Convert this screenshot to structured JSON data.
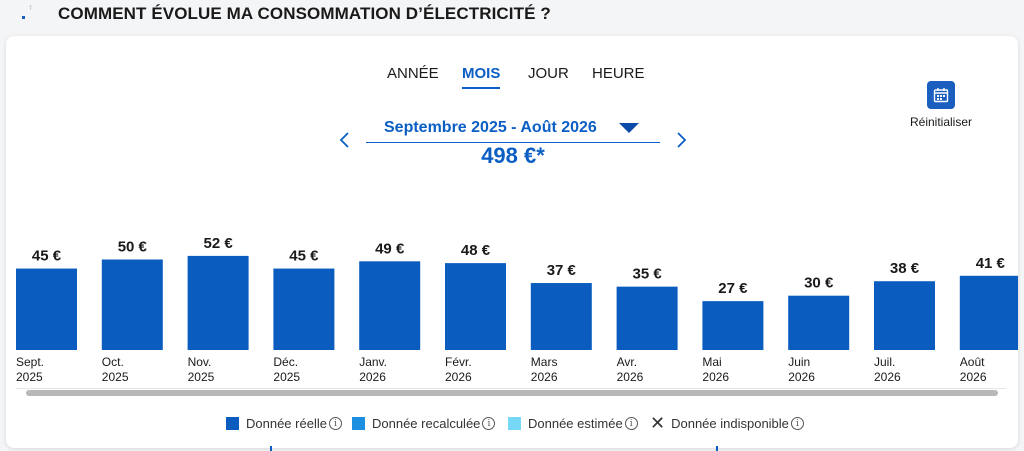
{
  "header": {
    "title": "COMMENT ÉVOLUE MA CONSOMMATION D’ÉLECTRICITÉ ?"
  },
  "tabs": [
    {
      "label": "ANNÉE",
      "active": false
    },
    {
      "label": "MOIS",
      "active": true
    },
    {
      "label": "JOUR",
      "active": false
    },
    {
      "label": "HEURE",
      "active": false
    }
  ],
  "reset": {
    "label": "Réinitialiser",
    "icon": "calendar-icon"
  },
  "period": {
    "label": "Septembre 2025 - Août 2026",
    "total": "498 €*"
  },
  "colors": {
    "primary": "#0b5fc4",
    "bar": "#0b5cbf",
    "recalc": "#1d8fe0",
    "estimated": "#76d7f7"
  },
  "chart_data": {
    "type": "bar",
    "categories": [
      [
        "Sept.",
        "2025"
      ],
      [
        "Oct.",
        "2025"
      ],
      [
        "Nov.",
        "2025"
      ],
      [
        "Déc.",
        "2025"
      ],
      [
        "Janv.",
        "2026"
      ],
      [
        "Févr.",
        "2026"
      ],
      [
        "Mars",
        "2026"
      ],
      [
        "Avr.",
        "2026"
      ],
      [
        "Mai",
        "2026"
      ],
      [
        "Juin",
        "2026"
      ],
      [
        "Juil.",
        "2026"
      ],
      [
        "Août",
        "2026"
      ]
    ],
    "values": [
      45,
      50,
      52,
      45,
      49,
      48,
      37,
      35,
      27,
      30,
      38,
      41
    ],
    "value_labels": [
      "45 €",
      "50 €",
      "52 €",
      "45 €",
      "49 €",
      "48 €",
      "37 €",
      "35 €",
      "27 €",
      "30 €",
      "38 €",
      "41 €"
    ],
    "unit": "€"
  },
  "legend": [
    {
      "label": "Donnée réelle",
      "swatch": "#0b5cbf",
      "info": "i"
    },
    {
      "label": "Donnée recalculée",
      "swatch": "#1d8fe0",
      "info": "i"
    },
    {
      "label": "Donnée estimée",
      "swatch": "#76d7f7",
      "info": "i"
    },
    {
      "label": "Donnée indisponible",
      "swatch": "cross",
      "info": "i"
    }
  ]
}
